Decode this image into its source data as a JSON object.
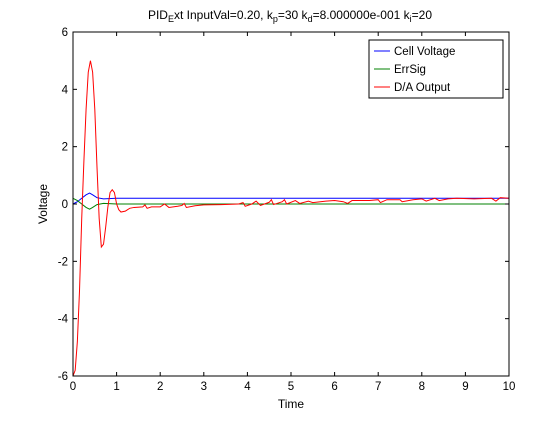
{
  "chart_data": {
    "type": "line",
    "title_parts": [
      {
        "t": "PID"
      },
      {
        "t": "E",
        "sub": true
      },
      {
        "t": "xt InputVal=0.20, k"
      },
      {
        "t": "p",
        "sub": true
      },
      {
        "t": "=30 k"
      },
      {
        "t": "d",
        "sub": true
      },
      {
        "t": "=8.000000e-001 k"
      },
      {
        "t": "i",
        "sub": true
      },
      {
        "t": "=20"
      }
    ],
    "xlabel": "Time",
    "ylabel": "Voltage",
    "xlim": [
      0,
      10
    ],
    "ylim": [
      -6,
      6
    ],
    "xticks": [
      "0",
      "1",
      "2",
      "3",
      "4",
      "5",
      "6",
      "7",
      "8",
      "9",
      "10"
    ],
    "yticks": [
      "-6",
      "-4",
      "-2",
      "0",
      "2",
      "4",
      "6"
    ],
    "grid": false,
    "legend_position": "top-right",
    "series": [
      {
        "name": "Cell Voltage",
        "color": "#0000ff",
        "points": [
          [
            0,
            0.0
          ],
          [
            0.1,
            0.08
          ],
          [
            0.2,
            0.2
          ],
          [
            0.3,
            0.32
          ],
          [
            0.38,
            0.38
          ],
          [
            0.45,
            0.32
          ],
          [
            0.55,
            0.22
          ],
          [
            0.7,
            0.18
          ],
          [
            1,
            0.2
          ],
          [
            2,
            0.2
          ],
          [
            4,
            0.2
          ],
          [
            6,
            0.2
          ],
          [
            8,
            0.2
          ],
          [
            10,
            0.2
          ]
        ]
      },
      {
        "name": "ErrSig",
        "color": "#008000",
        "points": [
          [
            0,
            0.2
          ],
          [
            0.1,
            0.12
          ],
          [
            0.2,
            0.0
          ],
          [
            0.3,
            -0.12
          ],
          [
            0.38,
            -0.18
          ],
          [
            0.45,
            -0.12
          ],
          [
            0.55,
            -0.02
          ],
          [
            0.7,
            0.02
          ],
          [
            1,
            0.0
          ],
          [
            2,
            0.0
          ],
          [
            4,
            0.0
          ],
          [
            6,
            0.0
          ],
          [
            8,
            0.0
          ],
          [
            10,
            0.0
          ]
        ]
      },
      {
        "name": "D/A Output",
        "color": "#ff0000",
        "points": [
          [
            0,
            -6.0
          ],
          [
            0.05,
            -5.8
          ],
          [
            0.1,
            -4.8
          ],
          [
            0.15,
            -3.0
          ],
          [
            0.2,
            -0.5
          ],
          [
            0.25,
            1.5
          ],
          [
            0.3,
            3.3
          ],
          [
            0.35,
            4.6
          ],
          [
            0.4,
            5.0
          ],
          [
            0.45,
            4.6
          ],
          [
            0.5,
            3.3
          ],
          [
            0.55,
            1.3
          ],
          [
            0.6,
            -0.5
          ],
          [
            0.65,
            -1.5
          ],
          [
            0.7,
            -1.4
          ],
          [
            0.75,
            -0.8
          ],
          [
            0.8,
            -0.1
          ],
          [
            0.85,
            0.4
          ],
          [
            0.9,
            0.5
          ],
          [
            0.95,
            0.4
          ],
          [
            1.0,
            0.0
          ],
          [
            1.05,
            -0.2
          ],
          [
            1.1,
            -0.28
          ],
          [
            1.2,
            -0.25
          ],
          [
            1.3,
            -0.15
          ],
          [
            1.4,
            -0.12
          ],
          [
            1.6,
            -0.1
          ],
          [
            1.65,
            -0.03
          ],
          [
            1.7,
            -0.15
          ],
          [
            1.8,
            -0.1
          ],
          [
            2.0,
            -0.1
          ],
          [
            2.1,
            0.0
          ],
          [
            2.2,
            -0.12
          ],
          [
            2.4,
            -0.08
          ],
          [
            2.5,
            -0.05
          ],
          [
            2.55,
            0.02
          ],
          [
            2.6,
            -0.12
          ],
          [
            2.8,
            -0.06
          ],
          [
            3.0,
            -0.03
          ],
          [
            3.4,
            -0.02
          ],
          [
            3.8,
            0.0
          ],
          [
            3.9,
            0.05
          ],
          [
            3.95,
            -0.08
          ],
          [
            4.1,
            0.0
          ],
          [
            4.2,
            0.1
          ],
          [
            4.3,
            -0.05
          ],
          [
            4.5,
            0.06
          ],
          [
            4.55,
            0.15
          ],
          [
            4.6,
            -0.02
          ],
          [
            4.8,
            0.08
          ],
          [
            4.85,
            0.15
          ],
          [
            4.9,
            0.0
          ],
          [
            5.1,
            0.12
          ],
          [
            5.2,
            0.02
          ],
          [
            5.4,
            0.1
          ],
          [
            5.5,
            0.05
          ],
          [
            5.8,
            0.1
          ],
          [
            6.0,
            0.12
          ],
          [
            6.2,
            0.08
          ],
          [
            6.3,
            0.02
          ],
          [
            6.4,
            0.12
          ],
          [
            6.8,
            0.12
          ],
          [
            7.0,
            0.15
          ],
          [
            7.05,
            0.05
          ],
          [
            7.2,
            0.15
          ],
          [
            7.5,
            0.15
          ],
          [
            7.55,
            0.08
          ],
          [
            7.8,
            0.15
          ],
          [
            8.0,
            0.18
          ],
          [
            8.1,
            0.1
          ],
          [
            8.3,
            0.2
          ],
          [
            8.4,
            0.12
          ],
          [
            8.6,
            0.18
          ],
          [
            8.8,
            0.2
          ],
          [
            9.2,
            0.18
          ],
          [
            9.6,
            0.2
          ],
          [
            9.7,
            0.1
          ],
          [
            9.8,
            0.22
          ],
          [
            10,
            0.2
          ]
        ]
      }
    ]
  }
}
